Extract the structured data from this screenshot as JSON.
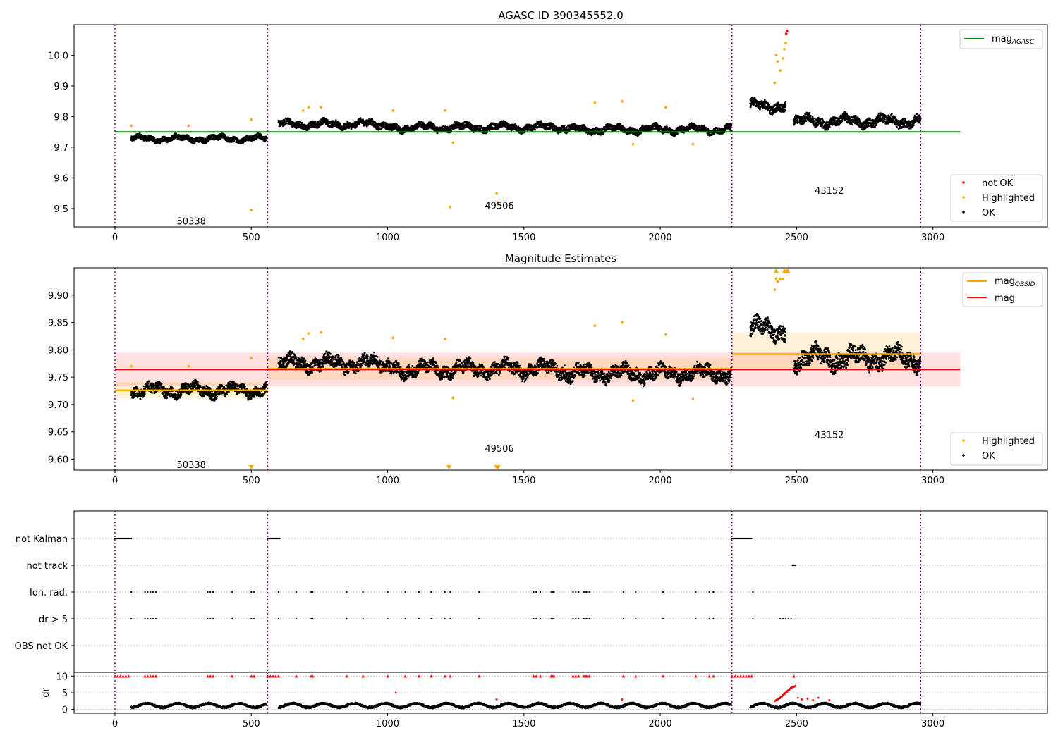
{
  "figure": {
    "obsid_boundaries": [
      0,
      560,
      2263,
      2955
    ],
    "colors": {
      "ok": "#000000",
      "highlighted": "#ffa500",
      "not_ok": "#ff0000",
      "agasc_line": "#008000",
      "mag_obsid": "#ffa500",
      "mag": "#ff0000",
      "boundary": "#800080",
      "grid": "#b0b0b0"
    }
  },
  "panels": [
    {
      "title": "AGASC ID 390345552.0",
      "xlim": [
        -150,
        3420
      ],
      "ylim": [
        9.44,
        10.1
      ],
      "xticks": [
        "0",
        "500",
        "1000",
        "1500",
        "2000",
        "2500",
        "3000"
      ],
      "yticks": [
        "9.5",
        "9.6",
        "9.7",
        "9.8",
        "9.9",
        "10.0"
      ],
      "annotations": [
        "50338",
        "49506",
        "43152"
      ],
      "legend_top": {
        "entries": [
          {
            "label": "mag",
            "sub": "AGASC"
          }
        ]
      },
      "legend_bottom": {
        "entries": [
          "not OK",
          "Highlighted",
          "OK"
        ]
      }
    },
    {
      "title": "Magnitude Estimates",
      "xlim": [
        -150,
        3420
      ],
      "ylim": [
        9.58,
        9.95
      ],
      "xticks": [
        "0",
        "500",
        "1000",
        "1500",
        "2000",
        "2500",
        "3000"
      ],
      "yticks": [
        "9.60",
        "9.65",
        "9.70",
        "9.75",
        "9.80",
        "9.85",
        "9.90"
      ],
      "annotations": [
        "50338",
        "49506",
        "43152"
      ],
      "legend_top": {
        "entries": [
          {
            "label": "mag",
            "sub": "OBSID"
          },
          {
            "label": "mag",
            "sub": ""
          }
        ]
      },
      "legend_bottom": {
        "entries": [
          "Highlighted",
          "OK"
        ]
      }
    },
    {
      "title": "",
      "xlim": [
        -150,
        3420
      ],
      "category_labels": [
        "not Kalman",
        "not track",
        "Ion. rad.",
        "dr > 5",
        "OBS not OK"
      ],
      "dr_label": "dr",
      "dr_ticks": [
        "0",
        "5",
        "10"
      ],
      "xticks": [
        "0",
        "500",
        "1000",
        "1500",
        "2000",
        "2500",
        "3000"
      ]
    }
  ],
  "chart_data": [
    {
      "type": "scatter",
      "title": "AGASC ID 390345552.0",
      "xlabel": "",
      "ylabel": "",
      "xlim": [
        -150,
        3420
      ],
      "ylim": [
        9.44,
        10.1
      ],
      "grid": false,
      "legend": [
        {
          "name": "mag_AGASC",
          "kind": "line",
          "placement": "top-right"
        },
        {
          "names": [
            "not OK",
            "Highlighted",
            "OK"
          ],
          "placement": "lower-right"
        }
      ],
      "agasc_mag": 9.75,
      "obsid_labels": [
        {
          "x": 280,
          "y": 9.46,
          "text": "50338"
        },
        {
          "x": 1410,
          "y": 9.51,
          "text": "49506"
        },
        {
          "x": 2620,
          "y": 9.56,
          "text": "43152"
        }
      ],
      "ok_segments": [
        {
          "x0": 60,
          "x1": 555,
          "level": 9.728,
          "amp": 0.018
        },
        {
          "x0": 600,
          "x1": 1000,
          "level": 9.775,
          "amp": 0.022
        },
        {
          "x0": 1000,
          "x1": 1650,
          "level": 9.765,
          "amp": 0.022
        },
        {
          "x0": 1650,
          "x1": 2260,
          "level": 9.758,
          "amp": 0.022
        },
        {
          "x0": 2330,
          "x1": 2460,
          "level": 9.835,
          "amp": 0.03
        },
        {
          "x0": 2490,
          "x1": 2955,
          "level": 9.785,
          "amp": 0.03
        }
      ],
      "highlighted_points": [
        [
          60,
          9.77
        ],
        [
          270,
          9.77
        ],
        [
          500,
          9.79
        ],
        [
          500,
          9.495
        ],
        [
          690,
          9.82
        ],
        [
          710,
          9.83
        ],
        [
          755,
          9.83
        ],
        [
          1020,
          9.82
        ],
        [
          1210,
          9.82
        ],
        [
          1230,
          9.505
        ],
        [
          1240,
          9.715
        ],
        [
          1400,
          9.55
        ],
        [
          1405,
          9.52
        ],
        [
          1760,
          9.845
        ],
        [
          1860,
          9.85
        ],
        [
          1900,
          9.71
        ],
        [
          2020,
          9.83
        ],
        [
          2120,
          9.71
        ],
        [
          2420,
          9.91
        ],
        [
          2425,
          10.0
        ],
        [
          2430,
          9.98
        ],
        [
          2440,
          9.95
        ],
        [
          2450,
          9.99
        ],
        [
          2455,
          10.02
        ],
        [
          2460,
          10.04
        ]
      ],
      "not_ok_points": [
        [
          2462,
          10.07
        ],
        [
          2465,
          10.08
        ]
      ]
    },
    {
      "type": "scatter",
      "title": "Magnitude Estimates",
      "xlabel": "",
      "ylabel": "",
      "xlim": [
        -150,
        3420
      ],
      "ylim": [
        9.58,
        9.95
      ],
      "grid": false,
      "legend": [
        {
          "names": [
            "mag_OBSID",
            "mag"
          ],
          "placement": "top-right"
        },
        {
          "names": [
            "Highlighted",
            "OK"
          ],
          "placement": "lower-right"
        }
      ],
      "mag": {
        "value": 9.764,
        "band": [
          9.733,
          9.795
        ],
        "x0": 0,
        "x1": 3100
      },
      "mag_obsid": [
        {
          "x0": 0,
          "x1": 560,
          "value": 9.726,
          "band": [
            9.711,
            9.741
          ]
        },
        {
          "x0": 560,
          "x1": 2263,
          "value": 9.765,
          "band": [
            9.745,
            9.785
          ]
        },
        {
          "x0": 2263,
          "x1": 2955,
          "value": 9.792,
          "band": [
            9.762,
            9.832
          ]
        }
      ],
      "obsid_labels": [
        {
          "x": 280,
          "y": 9.59,
          "text": "50338"
        },
        {
          "x": 1410,
          "y": 9.62,
          "text": "49506"
        },
        {
          "x": 2620,
          "y": 9.645,
          "text": "43152"
        }
      ],
      "ok_segments": [
        {
          "x0": 60,
          "x1": 555,
          "level": 9.726,
          "amp": 0.02
        },
        {
          "x0": 600,
          "x1": 1000,
          "level": 9.775,
          "amp": 0.024
        },
        {
          "x0": 1000,
          "x1": 1650,
          "level": 9.765,
          "amp": 0.024
        },
        {
          "x0": 1650,
          "x1": 2260,
          "level": 9.757,
          "amp": 0.024
        },
        {
          "x0": 2330,
          "x1": 2460,
          "level": 9.838,
          "amp": 0.03
        },
        {
          "x0": 2490,
          "x1": 2955,
          "level": 9.785,
          "amp": 0.032
        }
      ],
      "highlighted_points": [
        [
          60,
          9.77
        ],
        [
          270,
          9.77
        ],
        [
          500,
          9.785
        ],
        [
          690,
          9.82
        ],
        [
          710,
          9.83
        ],
        [
          755,
          9.832
        ],
        [
          1020,
          9.822
        ],
        [
          1210,
          9.82
        ],
        [
          1240,
          9.712
        ],
        [
          1760,
          9.844
        ],
        [
          1860,
          9.85
        ],
        [
          1900,
          9.707
        ],
        [
          2020,
          9.828
        ],
        [
          2120,
          9.71
        ],
        [
          2420,
          9.91
        ],
        [
          2425,
          9.93
        ],
        [
          2430,
          9.925
        ],
        [
          2440,
          9.93
        ],
        [
          2450,
          9.93
        ]
      ],
      "highlighted_triangles": [
        [
          500,
          9.585
        ],
        [
          1225,
          9.585
        ],
        [
          1400,
          9.585
        ],
        [
          1405,
          9.585
        ],
        [
          2425,
          9.945
        ],
        [
          2455,
          9.945
        ],
        [
          2462,
          9.945
        ],
        [
          2468,
          9.945
        ]
      ]
    },
    {
      "type": "scatter",
      "title": "",
      "xlim": [
        -150,
        3420
      ],
      "categories": [
        "not Kalman",
        "not track",
        "Ion. rad.",
        "dr > 5",
        "OBS not OK"
      ],
      "flags": {
        "not Kalman": [
          [
            0,
            60
          ],
          [
            560,
            605
          ],
          [
            2263,
            2335
          ]
        ],
        "not track": [
          [
            2485,
            2495
          ]
        ],
        "Ion. rad.": [
          60,
          110,
          120,
          130,
          140,
          150,
          340,
          350,
          360,
          430,
          500,
          510,
          600,
          665,
          720,
          725,
          850,
          910,
          1000,
          1065,
          1115,
          1160,
          1210,
          1230,
          1335,
          1535,
          1545,
          1560,
          1600,
          1605,
          1610,
          1680,
          1690,
          1700,
          1720,
          1725,
          1730,
          1740,
          1865,
          1910,
          2010,
          2130,
          2180,
          2195,
          2260,
          2340
        ],
        "dr > 5": [
          60,
          110,
          120,
          130,
          140,
          150,
          340,
          350,
          360,
          430,
          500,
          510,
          600,
          665,
          720,
          725,
          850,
          910,
          1000,
          1065,
          1115,
          1160,
          1210,
          1230,
          1335,
          1535,
          1545,
          1560,
          1600,
          1605,
          1610,
          1680,
          1690,
          1700,
          1720,
          1725,
          1730,
          1740,
          1865,
          1910,
          2010,
          2130,
          2180,
          2195,
          2260,
          2340,
          2440,
          2450,
          2460,
          2470,
          2480
        ],
        "OBS not OK": []
      },
      "dr": {
        "ylim": [
          -0.5,
          10.5
        ],
        "ok_segments": [
          {
            "x0": 60,
            "x1": 555
          },
          {
            "x0": 600,
            "x1": 2260
          },
          {
            "x0": 2330,
            "x1": 2955
          }
        ],
        "ok_level": 1.2,
        "not_ok_rise": [
          [
            2420,
            2.5
          ],
          [
            2440,
            3.5
          ],
          [
            2460,
            5.0
          ],
          [
            2480,
            6.5
          ],
          [
            2495,
            7.0
          ]
        ],
        "not_ok_points": [
          [
            1030,
            5.0
          ],
          [
            1400,
            3.0
          ],
          [
            1860,
            3.0
          ],
          [
            2505,
            3.5
          ],
          [
            2520,
            3.0
          ],
          [
            2540,
            3.2
          ],
          [
            2560,
            2.8
          ],
          [
            2580,
            3.5
          ],
          [
            2620,
            2.8
          ]
        ],
        "clipped_markers": [
          0,
          10,
          20,
          30,
          40,
          50,
          110,
          120,
          130,
          140,
          150,
          340,
          350,
          360,
          430,
          500,
          510,
          560,
          570,
          580,
          590,
          600,
          665,
          720,
          725,
          850,
          910,
          1000,
          1065,
          1115,
          1160,
          1210,
          1230,
          1335,
          1535,
          1545,
          1560,
          1600,
          1605,
          1610,
          1680,
          1690,
          1700,
          1720,
          1725,
          1730,
          1740,
          1865,
          1910,
          2010,
          2130,
          2180,
          2195,
          2263,
          2275,
          2285,
          2295,
          2305,
          2315,
          2325,
          2335,
          2490
        ]
      }
    }
  ]
}
